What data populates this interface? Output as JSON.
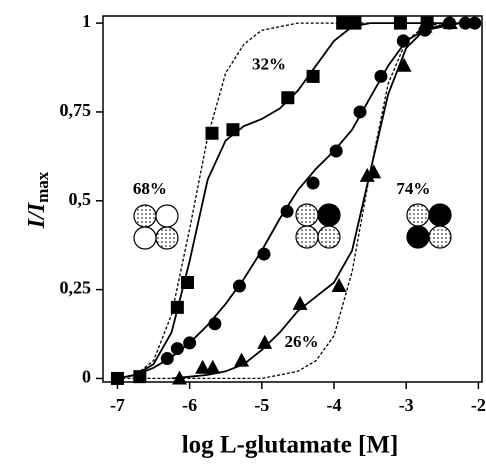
{
  "chart_data": {
    "type": "scatter",
    "xlabel": "log L-glutamate [M]",
    "ylabel": [
      "I/I",
      "max"
    ],
    "xlim": [
      -7.2,
      -1.95
    ],
    "ylim": [
      -0.01,
      1.02
    ],
    "xticks": [
      -7,
      -6,
      -5,
      -4,
      -3,
      -2
    ],
    "yticks": [
      0,
      {
        "value": 0.25,
        "label": "0,25"
      },
      {
        "value": 0.5,
        "label": "0,5"
      },
      {
        "value": 0.75,
        "label": "0,75"
      },
      1
    ],
    "color": "#000000",
    "series": [
      {
        "marker": "square",
        "x": [
          -7,
          -6.69,
          -6.17,
          -6.03,
          -5.69,
          -5.4,
          -4.64,
          -4.29,
          -3.88,
          -3.71,
          -3.08,
          -2.71
        ],
        "values": [
          0,
          0.005,
          0.2,
          0.27,
          0.69,
          0.7,
          0.79,
          0.85,
          1,
          1,
          1,
          1
        ]
      },
      {
        "marker": "circle",
        "x": [
          -6.31,
          -6.17,
          -6.0,
          -5.65,
          -5.31,
          -4.97,
          -4.65,
          -4.29,
          -3.97,
          -3.64,
          -3.35,
          -3.04,
          -2.74,
          -2.4,
          -2.18,
          -2.05
        ],
        "values": [
          0.056,
          0.084,
          0.1,
          0.154,
          0.26,
          0.35,
          0.47,
          0.55,
          0.64,
          0.75,
          0.85,
          0.95,
          0.98,
          1,
          1,
          1
        ]
      },
      {
        "marker": "triangle",
        "x": [
          -6.14,
          -5.82,
          -5.68,
          -5.28,
          -4.96,
          -4.47,
          -3.93,
          -3.54,
          -3.45,
          -3.03,
          -2.74,
          -2.39
        ],
        "values": [
          0,
          0.03,
          0.03,
          0.05,
          0.1,
          0.21,
          0.26,
          0.57,
          0.58,
          0.88,
          0.99,
          1
        ]
      }
    ],
    "curves": [
      {
        "style": "solid",
        "x": [
          -7,
          -6.75,
          -6.5,
          -6.25,
          -6,
          -5.75,
          -5.5,
          -5.25,
          -5,
          -4.75,
          -4.5,
          -4.25,
          -4,
          -3.75,
          -3.5,
          -3,
          -2.5,
          -2
        ],
        "values": [
          0,
          0.01,
          0.04,
          0.13,
          0.33,
          0.56,
          0.67,
          0.71,
          0.73,
          0.76,
          0.81,
          0.88,
          0.95,
          0.99,
          1,
          1,
          1,
          1
        ]
      },
      {
        "style": "solid",
        "x": [
          -7,
          -6.75,
          -6.5,
          -6.25,
          -6,
          -5.75,
          -5.5,
          -5.25,
          -5,
          -4.75,
          -4.5,
          -4.25,
          -4,
          -3.75,
          -3.5,
          -3.25,
          -3,
          -2.75,
          -2.5,
          -2.25,
          -2
        ],
        "values": [
          0,
          0.01,
          0.03,
          0.06,
          0.1,
          0.15,
          0.21,
          0.28,
          0.36,
          0.45,
          0.53,
          0.59,
          0.64,
          0.7,
          0.79,
          0.88,
          0.95,
          0.98,
          0.99,
          1,
          1
        ]
      },
      {
        "style": "solid",
        "x": [
          -6.25,
          -6,
          -5.75,
          -5.5,
          -5.25,
          -5,
          -4.75,
          -4.5,
          -4.25,
          -4,
          -3.75,
          -3.5,
          -3.25,
          -3,
          -2.75,
          -2.5,
          -2.25,
          -2
        ],
        "values": [
          0,
          0.005,
          0.01,
          0.02,
          0.04,
          0.08,
          0.13,
          0.19,
          0.23,
          0.27,
          0.36,
          0.58,
          0.8,
          0.93,
          0.98,
          0.995,
          1,
          1
        ]
      },
      {
        "style": "dashed",
        "x": [
          -7,
          -6.75,
          -6.5,
          -6.25,
          -6,
          -5.75,
          -5.5,
          -5.25,
          -5,
          -4.75,
          -4.5,
          -4,
          -3,
          -2
        ],
        "values": [
          0,
          0.01,
          0.05,
          0.18,
          0.42,
          0.68,
          0.86,
          0.94,
          0.98,
          0.99,
          1,
          1,
          1,
          1
        ]
      },
      {
        "style": "dashed",
        "x": [
          -7,
          -6,
          -5,
          -4.75,
          -4.5,
          -4.25,
          -4,
          -3.75,
          -3.5,
          -3.25,
          -3,
          -2.75,
          -2.5,
          -2
        ],
        "values": [
          0,
          0,
          0,
          0.01,
          0.02,
          0.05,
          0.12,
          0.3,
          0.58,
          0.83,
          0.95,
          0.99,
          1,
          1
        ]
      }
    ],
    "annotations": [
      {
        "text": "32%",
        "x": -4.9,
        "y": 0.88
      },
      {
        "text": "68%",
        "x": -6.55,
        "y": 0.53
      },
      {
        "text": "74%",
        "x": -2.9,
        "y": 0.53
      },
      {
        "text": "26%",
        "x": -4.45,
        "y": 0.1
      }
    ]
  }
}
